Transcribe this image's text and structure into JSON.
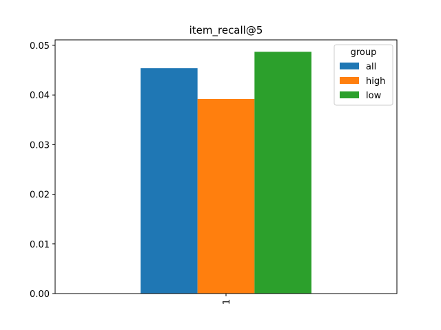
{
  "chart_data": {
    "type": "bar",
    "title": "item_recall@5",
    "xlabel": "",
    "ylabel": "",
    "categories": [
      "1"
    ],
    "series": [
      {
        "name": "all",
        "values": [
          0.0454
        ],
        "color": "#1f77b4"
      },
      {
        "name": "high",
        "values": [
          0.0392
        ],
        "color": "#ff7f0e"
      },
      {
        "name": "low",
        "values": [
          0.0487
        ],
        "color": "#2ca02c"
      }
    ],
    "ylim": [
      0,
      0.0511
    ],
    "yticks": [
      "0.00",
      "0.01",
      "0.02",
      "0.03",
      "0.04",
      "0.05"
    ],
    "grid": false,
    "legend": {
      "title": "group",
      "placement": "top-right"
    }
  }
}
